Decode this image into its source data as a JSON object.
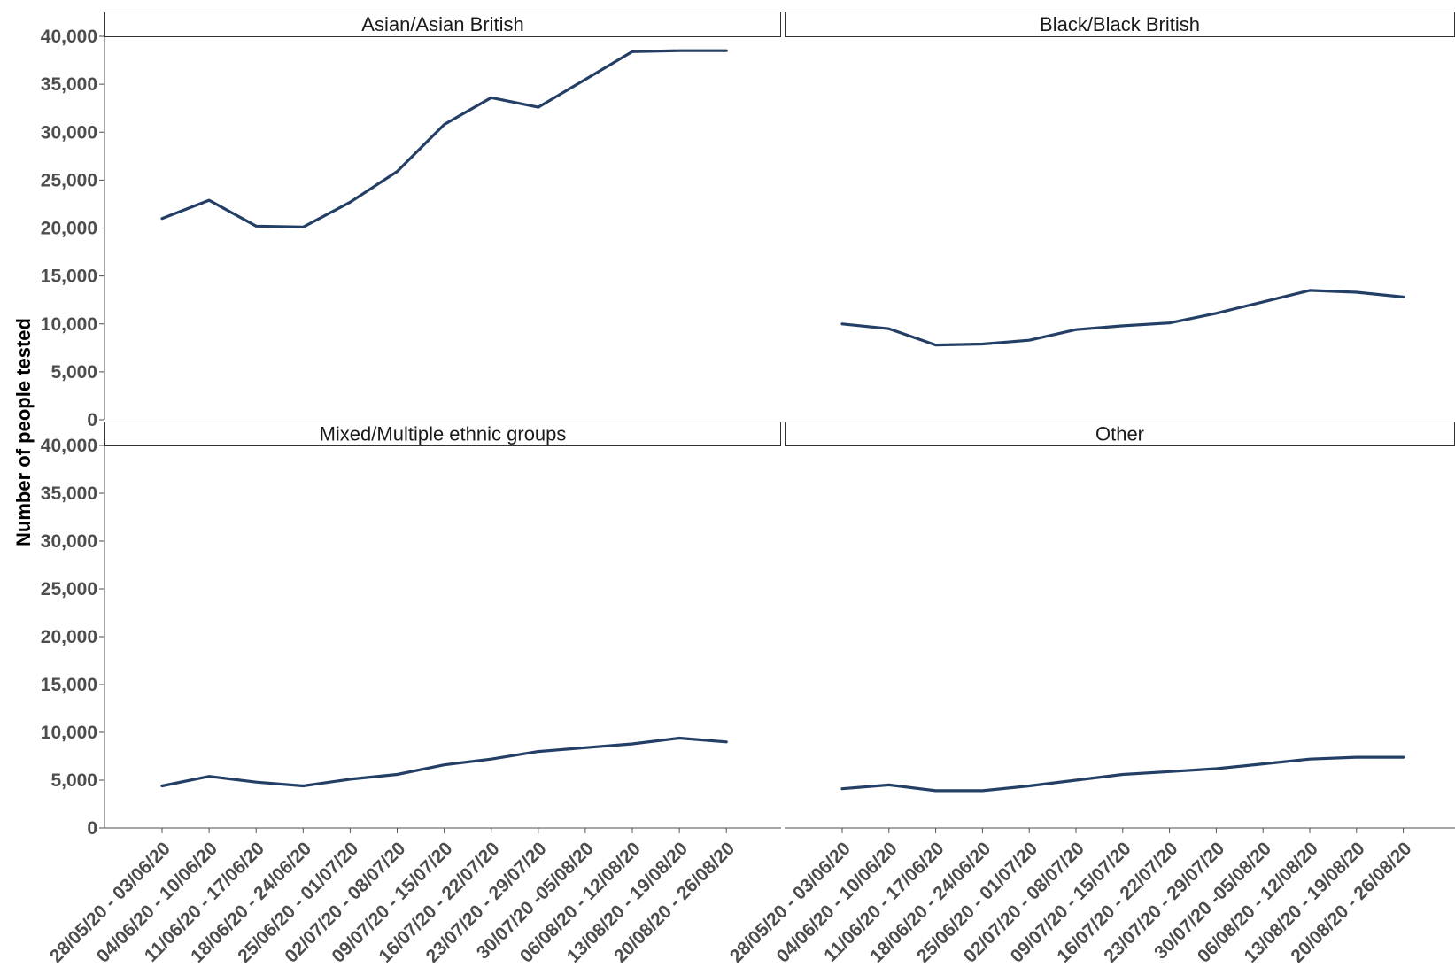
{
  "chart_data": {
    "type": "line",
    "ylabel": "Number of people tested",
    "ylim": [
      0,
      40000
    ],
    "yticks": [
      0,
      5000,
      10000,
      15000,
      20000,
      25000,
      30000,
      35000,
      40000
    ],
    "ytick_labels": [
      "0",
      "5,000",
      "10,000",
      "15,000",
      "20,000",
      "25,000",
      "30,000",
      "35,000",
      "40,000"
    ],
    "categories": [
      "28/05/20 - 03/06/20",
      "04/06/20 - 10/06/20",
      "11/06/20 - 17/06/20",
      "18/06/20 - 24/06/20",
      "25/06/20 - 01/07/20",
      "02/07/20 - 08/07/20",
      "09/07/20 - 15/07/20",
      "16/07/20 - 22/07/20",
      "23/07/20 - 29/07/20",
      "30/07/20 -05/08/20",
      "06/08/20 - 12/08/20",
      "13/08/20 - 19/08/20",
      "20/08/20 - 26/08/20"
    ],
    "line_color": "#243f66",
    "grid": false,
    "layout": "2x2 facets, shared axes",
    "panels": [
      {
        "title": "Asian/Asian British",
        "values": [
          21000,
          22900,
          20200,
          20100,
          22700,
          25900,
          30800,
          33600,
          32600,
          35500,
          38400,
          38500,
          38500
        ]
      },
      {
        "title": "Black/Black British",
        "values": [
          10000,
          9500,
          7800,
          7900,
          8300,
          9400,
          9800,
          10100,
          11100,
          12300,
          13500,
          13300,
          12800
        ]
      },
      {
        "title": "Mixed/Multiple ethnic groups",
        "values": [
          4400,
          5400,
          4800,
          4400,
          5100,
          5600,
          6600,
          7200,
          8000,
          8400,
          8800,
          9400,
          9000
        ]
      },
      {
        "title": "Other",
        "values": [
          4100,
          4500,
          3900,
          3900,
          4400,
          5000,
          5600,
          5900,
          6200,
          6700,
          7200,
          7400,
          7400
        ]
      }
    ]
  }
}
